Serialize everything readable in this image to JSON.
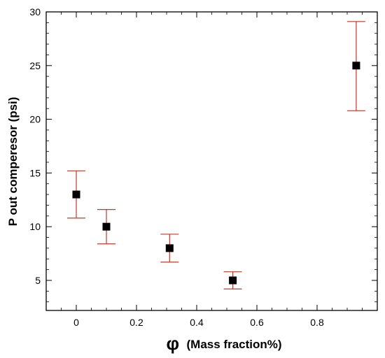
{
  "chart_data": {
    "type": "scatter",
    "x_axis": {
      "label_symbol": "φ",
      "label_text": "(Mass fraction%)",
      "range": [
        -0.1,
        1.0
      ],
      "ticks": [
        0,
        0.2,
        0.4,
        0.6,
        0.8
      ],
      "tick_labels": [
        "0",
        "0.2",
        "0.4",
        "0.6",
        "0.8"
      ]
    },
    "y_axis": {
      "label": "P out comperesor (psi)",
      "range": [
        2.2,
        30
      ],
      "ticks": [
        5,
        10,
        15,
        20,
        25,
        30
      ],
      "tick_labels": [
        "5",
        "10",
        "15",
        "20",
        "25",
        "30"
      ]
    },
    "grid": false,
    "marker": "square",
    "colors": {
      "marker": "#000000",
      "error_bar": "#c0392b",
      "axes": "#000000"
    },
    "points": [
      {
        "x": 0.0,
        "y": 13,
        "y_low": 10.8,
        "y_high": 15.2
      },
      {
        "x": 0.1,
        "y": 10,
        "y_low": 8.4,
        "y_high": 11.6
      },
      {
        "x": 0.31,
        "y": 8,
        "y_low": 6.7,
        "y_high": 9.3
      },
      {
        "x": 0.52,
        "y": 5,
        "y_low": 4.2,
        "y_high": 5.8
      },
      {
        "x": 0.93,
        "y": 25,
        "y_low": 20.8,
        "y_high": 29.1
      }
    ]
  }
}
